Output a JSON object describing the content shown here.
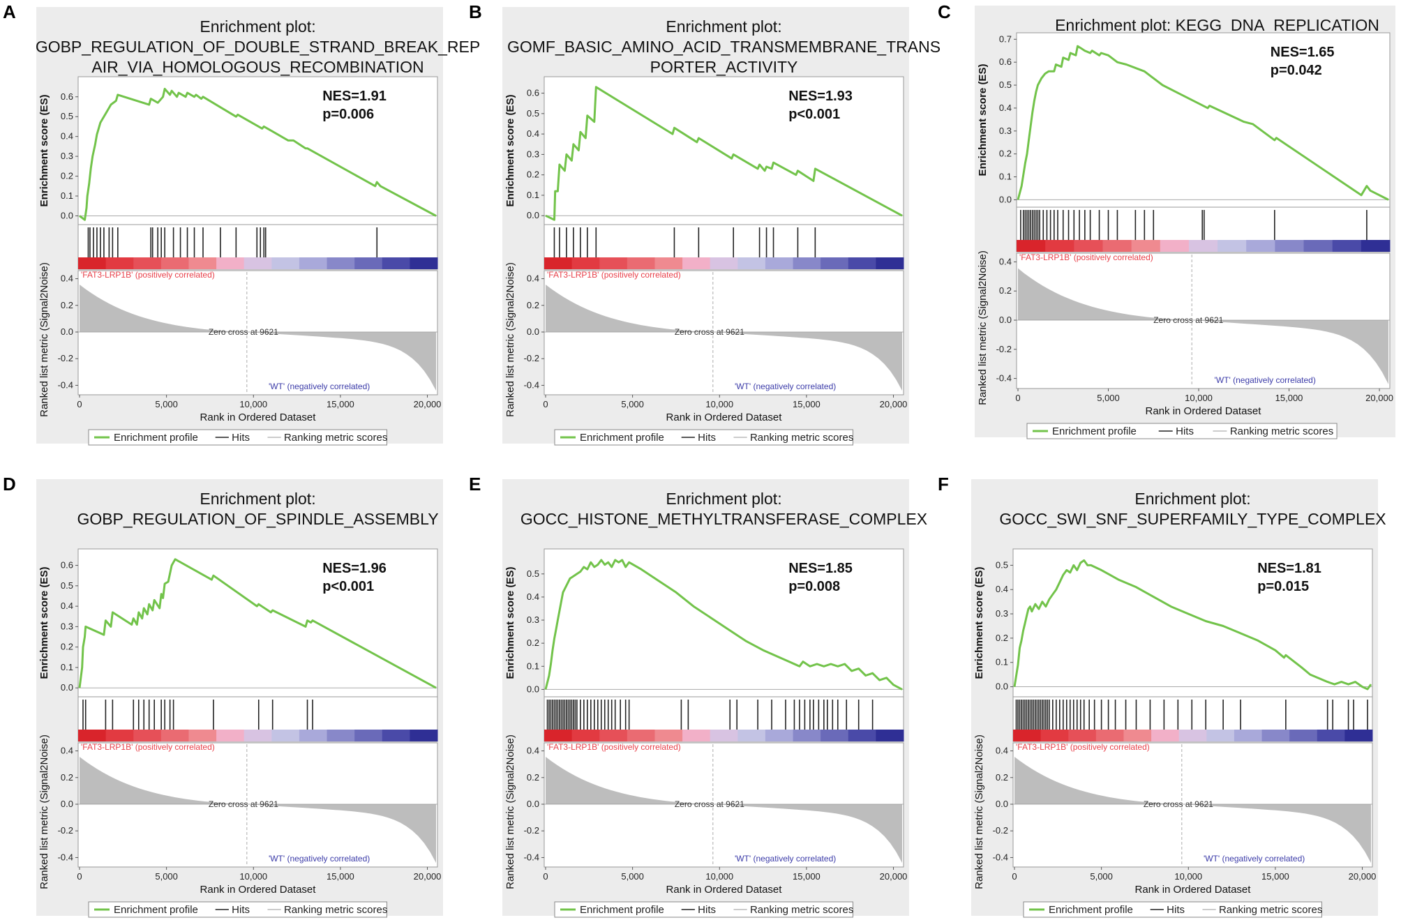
{
  "figure": {
    "enrichment_title": "Enrichment plot:",
    "y_label_top": "Enrichment score (ES)",
    "y_label_bottom": "Ranked list metric (Signal2Noise)",
    "x_label": "Rank in Ordered Dataset",
    "positive_label": "'FAT3-LRP1B' (positively correlated)",
    "negative_label": "'WT' (negatively correlated)",
    "zero_cross_label": "Zero cross at 9621",
    "legend": {
      "profile": "Enrichment profile",
      "hits": "Hits",
      "ranking": "Ranking metric scores"
    },
    "colors": {
      "es_line": "#72c34a",
      "hit_line": "#222222",
      "metric_fill": "#bdbdbd",
      "plot_bg": "#ececec",
      "positive_text": "#e8404a",
      "negative_text": "#3b3ba8"
    }
  },
  "chart_data": [
    {
      "panel": "A",
      "type": "line",
      "title_lines": [
        "Enrichment plot:",
        "GOBP_REGULATION_OF_DOUBLE_STRAND_BREAK_REP",
        "AIR_VIA_HOMOLOGOUS_RECOMBINATION"
      ],
      "nes": "NES=1.91",
      "p": "p=0.006",
      "ylim": [
        -0.03,
        0.68
      ],
      "yticks": [
        0.0,
        0.1,
        0.2,
        0.3,
        0.4,
        0.5,
        0.6
      ],
      "xlim": [
        0,
        20500
      ],
      "xticks": [
        0,
        5000,
        10000,
        15000,
        20000
      ],
      "xtick_labels": [
        "0",
        "5,000",
        "10,000",
        "15,000",
        "20,000"
      ],
      "metric_ticks": [
        0.4,
        0.2,
        0.0,
        -0.2,
        -0.4
      ],
      "zero_cross": 9621,
      "es_x": [
        0,
        300,
        400,
        450,
        550,
        650,
        750,
        900,
        1000,
        1100,
        1200,
        1400,
        1600,
        1800,
        2100,
        2200,
        4000,
        4100,
        4500,
        4800,
        4900,
        5200,
        5300,
        5600,
        5700,
        6100,
        6200,
        6600,
        6700,
        7000,
        7100,
        9000,
        9100,
        10500,
        10600,
        11000,
        12000,
        12300,
        13000,
        13100,
        17000,
        17100,
        17300,
        20500
      ],
      "es_y": [
        0.0,
        -0.02,
        0.04,
        0.1,
        0.16,
        0.24,
        0.3,
        0.36,
        0.41,
        0.44,
        0.47,
        0.5,
        0.53,
        0.56,
        0.58,
        0.61,
        0.56,
        0.59,
        0.57,
        0.6,
        0.64,
        0.61,
        0.63,
        0.6,
        0.62,
        0.6,
        0.62,
        0.6,
        0.61,
        0.59,
        0.6,
        0.5,
        0.51,
        0.44,
        0.45,
        0.43,
        0.38,
        0.38,
        0.34,
        0.34,
        0.15,
        0.17,
        0.15,
        0.0
      ],
      "hits": [
        500,
        600,
        800,
        1000,
        1200,
        1400,
        1700,
        1900,
        2200,
        4100,
        4200,
        4500,
        4700,
        4900,
        5400,
        5800,
        6200,
        6600,
        7100,
        8100,
        9000,
        10200,
        10400,
        10600,
        10700,
        17100
      ]
    },
    {
      "panel": "B",
      "type": "line",
      "title_lines": [
        "Enrichment plot:",
        "GOMF_BASIC_AMINO_ACID_TRANSMEMBRANE_TRANS",
        "PORTER_ACTIVITY"
      ],
      "nes": "NES=1.93",
      "p": "p<0.001",
      "ylim": [
        -0.03,
        0.66
      ],
      "yticks": [
        0.0,
        0.1,
        0.2,
        0.3,
        0.4,
        0.5,
        0.6
      ],
      "xlim": [
        0,
        20500
      ],
      "xticks": [
        0,
        5000,
        10000,
        15000,
        20000
      ],
      "xtick_labels": [
        "0",
        "5,000",
        "10,000",
        "15,000",
        "20,000"
      ],
      "metric_ticks": [
        0.4,
        0.2,
        0.0,
        -0.2,
        -0.4
      ],
      "zero_cross": 9621,
      "es_x": [
        0,
        500,
        550,
        700,
        800,
        1100,
        1200,
        1500,
        1600,
        1900,
        2000,
        2300,
        2400,
        2800,
        2900,
        7300,
        7400,
        8700,
        8800,
        10700,
        10800,
        12200,
        12300,
        12600,
        12700,
        13000,
        13100,
        14400,
        14500,
        15400,
        15500,
        20500
      ],
      "es_y": [
        0.0,
        -0.02,
        0.12,
        0.12,
        0.25,
        0.22,
        0.3,
        0.27,
        0.35,
        0.32,
        0.41,
        0.38,
        0.49,
        0.46,
        0.63,
        0.4,
        0.43,
        0.36,
        0.38,
        0.28,
        0.3,
        0.23,
        0.25,
        0.22,
        0.24,
        0.23,
        0.26,
        0.2,
        0.22,
        0.17,
        0.23,
        0.0
      ],
      "hits": [
        500,
        800,
        1200,
        1600,
        2000,
        2400,
        2900,
        7400,
        8800,
        10800,
        12300,
        12700,
        13100,
        14500,
        15500
      ]
    },
    {
      "panel": "C",
      "type": "line",
      "title_lines": [
        "Enrichment plot: KEGG_DNA_REPLICATION"
      ],
      "nes": "NES=1.65",
      "p": "p=0.042",
      "ylim": [
        -0.02,
        0.71
      ],
      "yticks": [
        0.0,
        0.1,
        0.2,
        0.3,
        0.4,
        0.5,
        0.6,
        0.7
      ],
      "xlim": [
        0,
        20500
      ],
      "xticks": [
        0,
        5000,
        10000,
        15000,
        20000
      ],
      "xtick_labels": [
        "0",
        "5,000",
        "10,000",
        "15,000",
        "20,000"
      ],
      "metric_ticks": [
        0.4,
        0.2,
        0.0,
        -0.2,
        -0.4
      ],
      "zero_cross": 9621,
      "es_x": [
        0,
        200,
        300,
        400,
        500,
        600,
        700,
        800,
        900,
        1000,
        1100,
        1300,
        1500,
        1700,
        2000,
        2100,
        2400,
        2500,
        2800,
        2900,
        3200,
        3300,
        3500,
        3700,
        4000,
        4100,
        4500,
        4600,
        5000,
        5500,
        6000,
        7000,
        7500,
        8000,
        9000,
        10000,
        10500,
        10600,
        12500,
        13000,
        14200,
        14300,
        19000,
        19300,
        19500,
        20500
      ],
      "es_y": [
        0.0,
        0.06,
        0.11,
        0.16,
        0.2,
        0.26,
        0.32,
        0.38,
        0.43,
        0.47,
        0.5,
        0.53,
        0.55,
        0.56,
        0.56,
        0.59,
        0.58,
        0.62,
        0.61,
        0.64,
        0.63,
        0.67,
        0.66,
        0.65,
        0.64,
        0.65,
        0.63,
        0.64,
        0.63,
        0.6,
        0.59,
        0.56,
        0.53,
        0.5,
        0.46,
        0.42,
        0.4,
        0.41,
        0.34,
        0.33,
        0.26,
        0.27,
        0.02,
        0.06,
        0.04,
        0.0
      ],
      "hits": [
        150,
        300,
        400,
        500,
        600,
        700,
        800,
        900,
        1000,
        1100,
        1200,
        1400,
        1600,
        1800,
        2000,
        2200,
        2500,
        2800,
        3100,
        3400,
        3700,
        4000,
        4500,
        5000,
        5500,
        6500,
        7000,
        7500,
        10200,
        10300,
        14200,
        19300
      ]
    },
    {
      "panel": "D",
      "type": "line",
      "title_lines": [
        "Enrichment plot:",
        "GOBP_REGULATION_OF_SPINDLE_ASSEMBLY"
      ],
      "nes": "NES=1.96",
      "p": "p<0.001",
      "ylim": [
        -0.03,
        0.66
      ],
      "yticks": [
        0.0,
        0.1,
        0.2,
        0.3,
        0.4,
        0.5,
        0.6
      ],
      "xlim": [
        0,
        20500
      ],
      "xticks": [
        0,
        5000,
        10000,
        15000,
        20000
      ],
      "xtick_labels": [
        "0",
        "5,000",
        "10,000",
        "15,000",
        "20,000"
      ],
      "metric_ticks": [
        0.4,
        0.2,
        0.0,
        -0.2,
        -0.4
      ],
      "zero_cross": 9621,
      "es_x": [
        0,
        150,
        200,
        300,
        350,
        1400,
        1500,
        1800,
        1900,
        3000,
        3100,
        3300,
        3400,
        3600,
        3700,
        3900,
        4000,
        4200,
        4300,
        4600,
        4700,
        4800,
        4900,
        5100,
        5300,
        5500,
        7600,
        7700,
        10200,
        10300,
        11000,
        11100,
        13000,
        13100,
        13300,
        13400,
        20500
      ],
      "es_y": [
        0.0,
        0.1,
        0.2,
        0.25,
        0.3,
        0.26,
        0.33,
        0.3,
        0.37,
        0.31,
        0.34,
        0.31,
        0.37,
        0.34,
        0.39,
        0.36,
        0.41,
        0.38,
        0.43,
        0.39,
        0.46,
        0.44,
        0.51,
        0.52,
        0.6,
        0.63,
        0.53,
        0.55,
        0.4,
        0.41,
        0.37,
        0.38,
        0.3,
        0.33,
        0.32,
        0.33,
        0.0
      ],
      "hits": [
        200,
        350,
        1500,
        1900,
        3100,
        3400,
        3700,
        4000,
        4300,
        4700,
        4900,
        5200,
        5400,
        7700,
        10300,
        11100,
        13100,
        13400
      ]
    },
    {
      "panel": "E",
      "type": "line",
      "title_lines": [
        "Enrichment plot:",
        "GOCC_HISTONE_METHYLTRANSFERASE_COMPLEX"
      ],
      "nes": "NES=1.85",
      "p": "p=0.008",
      "ylim": [
        -0.02,
        0.59
      ],
      "yticks": [
        0.0,
        0.1,
        0.2,
        0.3,
        0.4,
        0.5
      ],
      "xlim": [
        0,
        20500
      ],
      "xticks": [
        0,
        5000,
        10000,
        15000,
        20000
      ],
      "xtick_labels": [
        "0",
        "5,000",
        "10,000",
        "15,000",
        "20,000"
      ],
      "metric_ticks": [
        0.4,
        0.2,
        0.0,
        -0.2,
        -0.4
      ],
      "zero_cross": 9621,
      "es_x": [
        0,
        200,
        300,
        400,
        500,
        600,
        700,
        800,
        900,
        1000,
        1200,
        1400,
        1600,
        1800,
        2000,
        2200,
        2400,
        2600,
        2800,
        3000,
        3200,
        3400,
        3600,
        3800,
        4000,
        4200,
        4400,
        4600,
        4800,
        5500,
        6500,
        7500,
        8500,
        9500,
        10500,
        11500,
        12500,
        14000,
        14600,
        14800,
        15200,
        15600,
        16000,
        16400,
        16800,
        17200,
        17600,
        18000,
        18400,
        18800,
        19200,
        19600,
        20000,
        20500
      ],
      "es_y": [
        0.0,
        0.06,
        0.11,
        0.17,
        0.22,
        0.26,
        0.3,
        0.34,
        0.38,
        0.42,
        0.45,
        0.48,
        0.49,
        0.5,
        0.51,
        0.53,
        0.52,
        0.55,
        0.53,
        0.54,
        0.56,
        0.54,
        0.55,
        0.53,
        0.56,
        0.55,
        0.56,
        0.53,
        0.55,
        0.52,
        0.47,
        0.42,
        0.36,
        0.31,
        0.26,
        0.21,
        0.17,
        0.12,
        0.1,
        0.12,
        0.1,
        0.11,
        0.1,
        0.11,
        0.1,
        0.11,
        0.08,
        0.09,
        0.06,
        0.07,
        0.04,
        0.05,
        0.02,
        0.0
      ],
      "hits": [
        100,
        200,
        300,
        400,
        500,
        600,
        700,
        800,
        900,
        1000,
        1100,
        1200,
        1300,
        1400,
        1500,
        1600,
        1700,
        1800,
        2000,
        2200,
        2400,
        2600,
        2800,
        3000,
        3200,
        3400,
        3600,
        3800,
        4000,
        4300,
        4600,
        4800,
        7800,
        8200,
        10600,
        11000,
        12200,
        13000,
        13800,
        14300,
        14600,
        14900,
        15200,
        15400,
        15700,
        16000,
        16200,
        16500,
        16800,
        17300,
        18000,
        18800
      ]
    },
    {
      "panel": "F",
      "type": "line",
      "title_lines": [
        "Enrichment plot:",
        "GOCC_SWI_SNF_SUPERFAMILY_TYPE_COMPLEX"
      ],
      "nes": "NES=1.81",
      "p": "p=0.015",
      "ylim": [
        -0.03,
        0.55
      ],
      "yticks": [
        0.0,
        0.1,
        0.2,
        0.3,
        0.4,
        0.5
      ],
      "xlim": [
        0,
        20500
      ],
      "xticks": [
        0,
        5000,
        10000,
        15000,
        20000
      ],
      "xtick_labels": [
        "0",
        "5,000",
        "10,000",
        "15,000",
        "20,000"
      ],
      "metric_ticks": [
        0.4,
        0.2,
        0.0,
        -0.2,
        -0.4
      ],
      "zero_cross": 9621,
      "es_x": [
        0,
        200,
        300,
        400,
        500,
        600,
        700,
        800,
        900,
        1000,
        1200,
        1400,
        1600,
        1800,
        2000,
        2200,
        2400,
        2600,
        2800,
        3000,
        3200,
        3400,
        3600,
        3800,
        4000,
        4200,
        4400,
        5000,
        5500,
        6000,
        7000,
        8000,
        9000,
        10000,
        11000,
        12000,
        13000,
        14000,
        15000,
        15500,
        15600,
        16500,
        17000,
        18000,
        18400,
        18800,
        19200,
        19600,
        20000,
        20300,
        20500
      ],
      "es_y": [
        0.0,
        0.09,
        0.16,
        0.19,
        0.23,
        0.26,
        0.29,
        0.32,
        0.33,
        0.31,
        0.34,
        0.32,
        0.35,
        0.33,
        0.36,
        0.38,
        0.4,
        0.43,
        0.46,
        0.48,
        0.47,
        0.5,
        0.48,
        0.51,
        0.52,
        0.5,
        0.5,
        0.48,
        0.46,
        0.44,
        0.41,
        0.37,
        0.33,
        0.3,
        0.27,
        0.25,
        0.22,
        0.19,
        0.15,
        0.12,
        0.13,
        0.08,
        0.05,
        0.02,
        0.01,
        0.02,
        0.01,
        0.02,
        0.0,
        -0.01,
        0.01
      ],
      "hits": [
        100,
        200,
        300,
        400,
        500,
        600,
        700,
        800,
        900,
        1000,
        1100,
        1200,
        1300,
        1400,
        1500,
        1600,
        1700,
        1800,
        1900,
        2000,
        2200,
        2400,
        2600,
        2800,
        3000,
        3200,
        3400,
        3600,
        3800,
        4000,
        4300,
        4600,
        5000,
        5400,
        5800,
        6400,
        7000,
        7800,
        8600,
        9400,
        10200,
        11000,
        12000,
        13000,
        15600,
        18000,
        18300,
        19200,
        19500,
        20300
      ]
    }
  ]
}
